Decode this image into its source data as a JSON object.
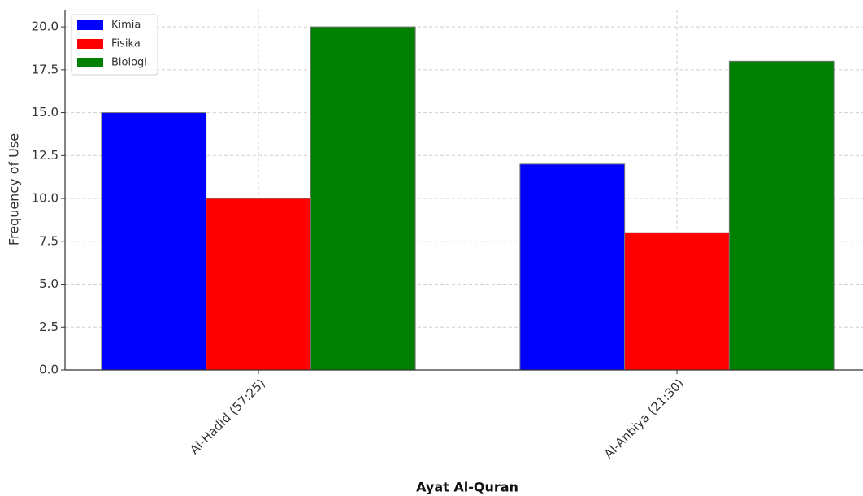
{
  "chart_data": {
    "type": "bar",
    "x_label": "Ayat Al-Quran",
    "y_label": "Frequency of Use",
    "categories": [
      "Al-Hadid (57:25)",
      "Al-Anbiya (21:30)"
    ],
    "series": [
      {
        "name": "Kimia",
        "color": "#0000ff",
        "values": [
          15,
          12
        ]
      },
      {
        "name": "Fisika",
        "color": "#ff0000",
        "values": [
          10,
          8
        ]
      },
      {
        "name": "Biologi",
        "color": "#008000",
        "values": [
          20,
          18
        ]
      }
    ],
    "ylim": [
      0,
      21
    ],
    "yticks": [
      {
        "value": 0,
        "label": "0.0"
      },
      2.5,
      {
        "value": 5,
        "label": "5.0"
      },
      7.5,
      {
        "value": 10,
        "label": "10.0"
      },
      12.5,
      {
        "value": 15,
        "label": "15.0"
      },
      17.5,
      {
        "value": 20,
        "label": "20.0"
      }
    ],
    "grid": true,
    "legend": "upper left"
  }
}
